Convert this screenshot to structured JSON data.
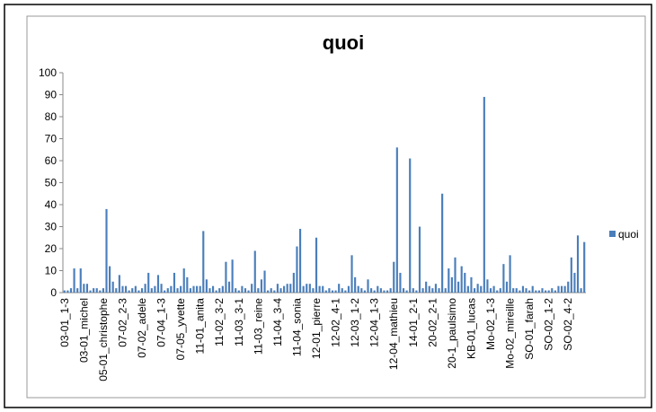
{
  "chart_data": {
    "type": "bar",
    "title": "quoi",
    "categories": [
      "03-01_1-3",
      null,
      null,
      null,
      null,
      null,
      "03-01_michel",
      null,
      null,
      null,
      null,
      null,
      "05-01_christophe",
      null,
      null,
      null,
      null,
      null,
      "07-02_2-3",
      null,
      null,
      null,
      null,
      null,
      "07-02_adele",
      null,
      null,
      null,
      null,
      null,
      "07-04_1-3",
      null,
      null,
      null,
      null,
      null,
      "07-05_yvette",
      null,
      null,
      null,
      null,
      null,
      "11-01_anita",
      null,
      null,
      null,
      null,
      null,
      "11-02_3-2",
      null,
      null,
      null,
      null,
      null,
      "11-03_3-1",
      null,
      null,
      null,
      null,
      null,
      "11-03_reine",
      null,
      null,
      null,
      null,
      null,
      "11-04_3-4",
      null,
      null,
      null,
      null,
      null,
      "11-04_sonia",
      null,
      null,
      null,
      null,
      null,
      "12-01_pierre",
      null,
      null,
      null,
      null,
      null,
      "12-02_4-1",
      null,
      null,
      null,
      null,
      null,
      "12-03_1-2",
      null,
      null,
      null,
      null,
      null,
      "12-04_1-3",
      null,
      null,
      null,
      null,
      null,
      "12-04_mathieu",
      null,
      null,
      null,
      null,
      null,
      "14-01_2-1",
      null,
      null,
      null,
      null,
      null,
      "20-02_2-1",
      null,
      null,
      null,
      null,
      null,
      "20-1_paulsimo",
      null,
      null,
      null,
      null,
      null,
      "KB-01_lucas",
      null,
      null,
      null,
      null,
      null,
      "Mo-02_1-3",
      null,
      null,
      null,
      null,
      null,
      "Mo-02_mireille",
      null,
      null,
      null,
      null,
      null,
      "SO-01_farah",
      null,
      null,
      null,
      null,
      null,
      "SO-02_1-2",
      null,
      null,
      null,
      null,
      null,
      "SO-02_4-2",
      null,
      null,
      null,
      null,
      null
    ],
    "series": [
      {
        "name": "quoi",
        "color": "#4a7ebb",
        "values": [
          1,
          1,
          2,
          11,
          2,
          11,
          4,
          4,
          1,
          2,
          2,
          1,
          2,
          38,
          12,
          5,
          2,
          8,
          3,
          3,
          1,
          2,
          3,
          1,
          2,
          4,
          9,
          2,
          3,
          8,
          4,
          1,
          2,
          3,
          9,
          2,
          3,
          11,
          7,
          2,
          3,
          3,
          3,
          28,
          6,
          2,
          3,
          1,
          2,
          3,
          14,
          5,
          15,
          2,
          1,
          3,
          2,
          1,
          4,
          19,
          2,
          6,
          10,
          1,
          2,
          1,
          4,
          2,
          3,
          4,
          4,
          9,
          21,
          29,
          3,
          4,
          4,
          2,
          25,
          3,
          3,
          1,
          2,
          1,
          1,
          4,
          2,
          1,
          3,
          17,
          7,
          3,
          2,
          1,
          6,
          2,
          1,
          3,
          2,
          1,
          1,
          2,
          14,
          66,
          9,
          2,
          1,
          61,
          2,
          1,
          30,
          2,
          5,
          3,
          2,
          4,
          2,
          45,
          2,
          11,
          7,
          16,
          5,
          12,
          9,
          3,
          7,
          2,
          4,
          3,
          89,
          6,
          2,
          3,
          1,
          2,
          13,
          5,
          17,
          2,
          2,
          1,
          3,
          2,
          1,
          3,
          1,
          1,
          2,
          1,
          1,
          2,
          1,
          3,
          3,
          3,
          5,
          16,
          9,
          26,
          2,
          23
        ]
      }
    ],
    "ylim": [
      0,
      100
    ],
    "yticks": [
      0,
      10,
      20,
      30,
      40,
      50,
      60,
      70,
      80,
      90,
      100
    ],
    "grid": false,
    "legend": "right"
  }
}
